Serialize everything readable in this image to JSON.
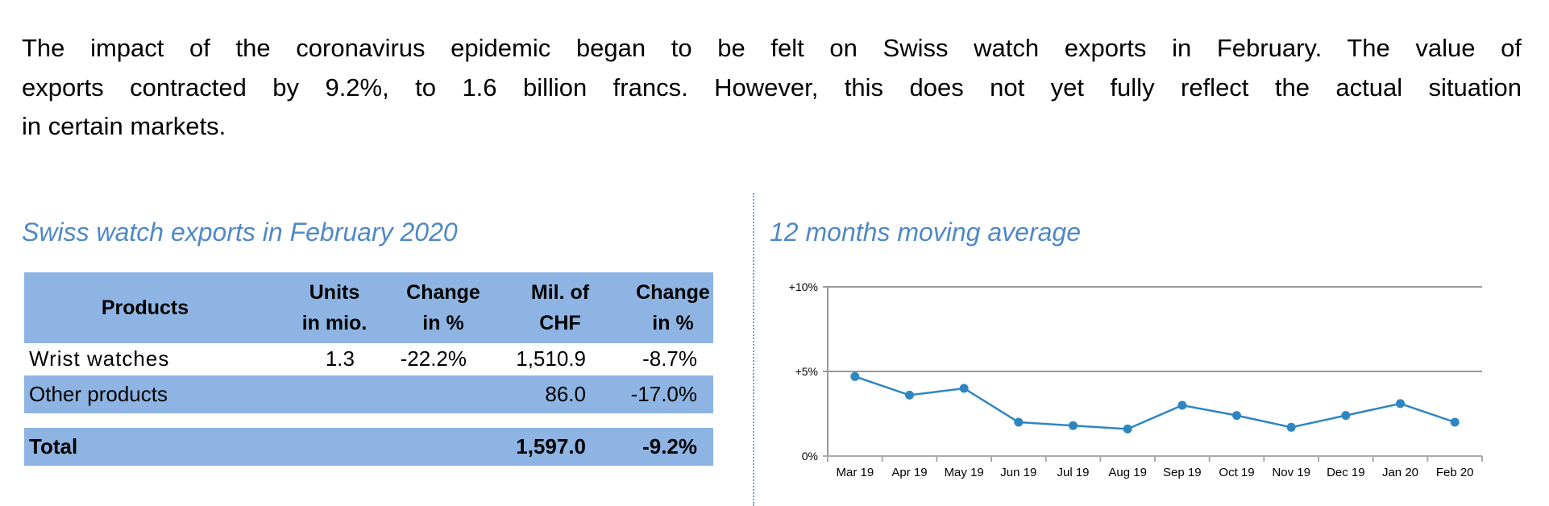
{
  "paragraph": {
    "lines": [
      "The impact of the coronavirus epidemic began to be felt on Swiss watch exports in February. The value of",
      "exports contracted by 9.2%, to 1.6 billion francs. However, this does not yet fully reflect the actual situation",
      "in certain markets."
    ]
  },
  "table": {
    "title": "Swiss watch exports in February 2020",
    "header": {
      "products": "Products",
      "units": [
        "Units",
        "in mio."
      ],
      "change_units": [
        "Change",
        "in %"
      ],
      "value": [
        "Mil. of",
        "CHF"
      ],
      "change_value": [
        "Change",
        "in %"
      ]
    },
    "rows": [
      {
        "product": "Wrist watches",
        "units": "1.3",
        "change_units": "-22.2%",
        "value": "1,510.9",
        "change_value": "-8.7%"
      },
      {
        "product": "Other products",
        "units": "",
        "change_units": "",
        "value": "86.0",
        "change_value": "-17.0%"
      }
    ],
    "total": {
      "product": "Total",
      "value": "1,597.0",
      "change_value": "-9.2%"
    },
    "band_color": "#8db4e2"
  },
  "chart_data": {
    "type": "line",
    "title": "12 months moving average",
    "categories": [
      "Mar 19",
      "Apr 19",
      "May 19",
      "Jun 19",
      "Jul 19",
      "Aug 19",
      "Sep 19",
      "Oct 19",
      "Nov 19",
      "Dec 19",
      "Jan 20",
      "Feb 20"
    ],
    "values": [
      4.7,
      3.6,
      4.0,
      2.0,
      1.8,
      1.6,
      3.0,
      2.4,
      1.7,
      2.4,
      3.1,
      2.0
    ],
    "ylim": [
      0,
      10
    ],
    "yticks": [
      0,
      5,
      10
    ],
    "ytick_labels": [
      "0%",
      "+5%",
      "+10%"
    ],
    "grid": true,
    "line_color": "#2e86c1",
    "heading_color": "#4f88c6"
  }
}
